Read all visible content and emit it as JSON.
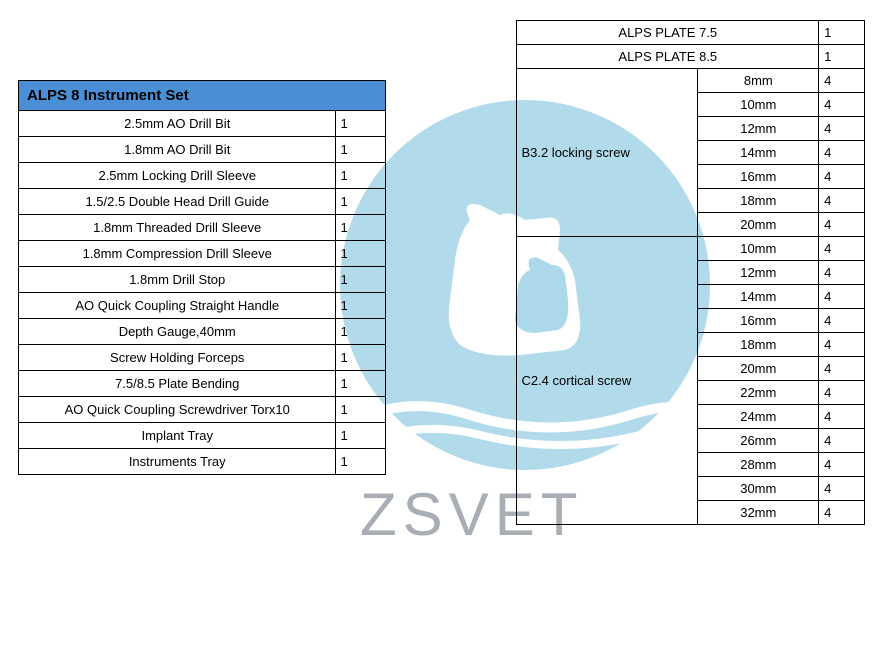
{
  "watermark_text": "ZSVET",
  "watermark_circle_color": "#a3d5e8",
  "watermark_text_color": "#9aa0a6",
  "left": {
    "title": "ALPS 8 Instrument Set",
    "header_bg": "#4a8fd6",
    "rows": [
      {
        "name": "2.5mm AO Drill Bit",
        "qty": "1"
      },
      {
        "name": "1.8mm AO Drill Bit",
        "qty": "1"
      },
      {
        "name": "2.5mm Locking Drill Sleeve",
        "qty": "1"
      },
      {
        "name": "1.5/2.5 Double Head Drill Guide",
        "qty": "1"
      },
      {
        "name": "1.8mm Threaded Drill Sleeve",
        "qty": "1"
      },
      {
        "name": "1.8mm Compression Drill Sleeve",
        "qty": "1"
      },
      {
        "name": "1.8mm Drill Stop",
        "qty": "1"
      },
      {
        "name": "AO Quick Coupling Straight Handle",
        "qty": "1"
      },
      {
        "name": "Depth Gauge,40mm",
        "qty": "1"
      },
      {
        "name": "Screw Holding Forceps",
        "qty": "1"
      },
      {
        "name": "7.5/8.5 Plate Bending",
        "qty": "1"
      },
      {
        "name": "AO Quick Coupling Screwdriver Torx10",
        "qty": "1"
      },
      {
        "name": "Implant Tray",
        "qty": "1"
      },
      {
        "name": "Instruments Tray",
        "qty": "1"
      }
    ]
  },
  "right": {
    "plates": [
      {
        "name": "ALPS PLATE 7.5",
        "qty": "1"
      },
      {
        "name": "ALPS PLATE 8.5",
        "qty": "1"
      }
    ],
    "groups": [
      {
        "label": "B3.2 locking screw",
        "rows": [
          {
            "size": "8mm",
            "qty": "4"
          },
          {
            "size": "10mm",
            "qty": "4"
          },
          {
            "size": "12mm",
            "qty": "4"
          },
          {
            "size": "14mm",
            "qty": "4"
          },
          {
            "size": "16mm",
            "qty": "4"
          },
          {
            "size": "18mm",
            "qty": "4"
          },
          {
            "size": "20mm",
            "qty": "4"
          }
        ]
      },
      {
        "label": "C2.4 cortical screw",
        "rows": [
          {
            "size": "10mm",
            "qty": "4"
          },
          {
            "size": "12mm",
            "qty": "4"
          },
          {
            "size": "14mm",
            "qty": "4"
          },
          {
            "size": "16mm",
            "qty": "4"
          },
          {
            "size": "18mm",
            "qty": "4"
          },
          {
            "size": "20mm",
            "qty": "4"
          },
          {
            "size": "22mm",
            "qty": "4"
          },
          {
            "size": "24mm",
            "qty": "4"
          },
          {
            "size": "26mm",
            "qty": "4"
          },
          {
            "size": "28mm",
            "qty": "4"
          },
          {
            "size": "30mm",
            "qty": "4"
          },
          {
            "size": "32mm",
            "qty": "4"
          }
        ]
      }
    ]
  }
}
